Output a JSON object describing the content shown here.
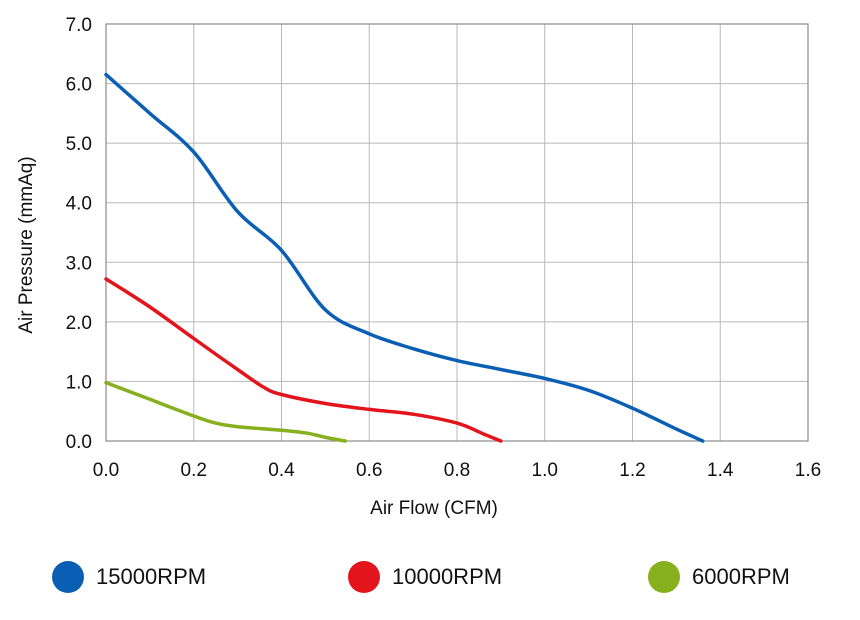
{
  "chart_data": {
    "type": "line",
    "xlabel": "Air Flow (CFM)",
    "ylabel": "Air Pressure (mmAq)",
    "xlim": [
      0,
      1.6
    ],
    "ylim": [
      0,
      7.0
    ],
    "xticks": [
      "0.0",
      "0.2",
      "0.4",
      "0.6",
      "0.8",
      "1.0",
      "1.2",
      "1.4",
      "1.6"
    ],
    "yticks": [
      "0.0",
      "1.0",
      "2.0",
      "3.0",
      "4.0",
      "5.0",
      "6.0",
      "7.0"
    ],
    "grid": true,
    "legend_position": "bottom",
    "series": [
      {
        "name": "15000RPM",
        "color": "#0a5fb4",
        "points": [
          [
            0.0,
            6.15
          ],
          [
            0.1,
            5.5
          ],
          [
            0.2,
            4.85
          ],
          [
            0.3,
            3.85
          ],
          [
            0.4,
            3.2
          ],
          [
            0.5,
            2.2
          ],
          [
            0.6,
            1.8
          ],
          [
            0.7,
            1.55
          ],
          [
            0.8,
            1.35
          ],
          [
            0.9,
            1.2
          ],
          [
            1.0,
            1.05
          ],
          [
            1.1,
            0.85
          ],
          [
            1.2,
            0.55
          ],
          [
            1.3,
            0.2
          ],
          [
            1.36,
            0.0
          ]
        ]
      },
      {
        "name": "10000RPM",
        "color": "#e3141b",
        "points": [
          [
            0.0,
            2.72
          ],
          [
            0.1,
            2.25
          ],
          [
            0.2,
            1.72
          ],
          [
            0.3,
            1.2
          ],
          [
            0.36,
            0.9
          ],
          [
            0.4,
            0.78
          ],
          [
            0.5,
            0.63
          ],
          [
            0.6,
            0.53
          ],
          [
            0.7,
            0.45
          ],
          [
            0.8,
            0.3
          ],
          [
            0.86,
            0.12
          ],
          [
            0.9,
            0.0
          ]
        ]
      },
      {
        "name": "6000RPM",
        "color": "#86b01e",
        "points": [
          [
            0.0,
            0.98
          ],
          [
            0.1,
            0.7
          ],
          [
            0.2,
            0.42
          ],
          [
            0.25,
            0.3
          ],
          [
            0.3,
            0.24
          ],
          [
            0.4,
            0.18
          ],
          [
            0.46,
            0.13
          ],
          [
            0.5,
            0.06
          ],
          [
            0.545,
            0.0
          ]
        ]
      }
    ]
  }
}
